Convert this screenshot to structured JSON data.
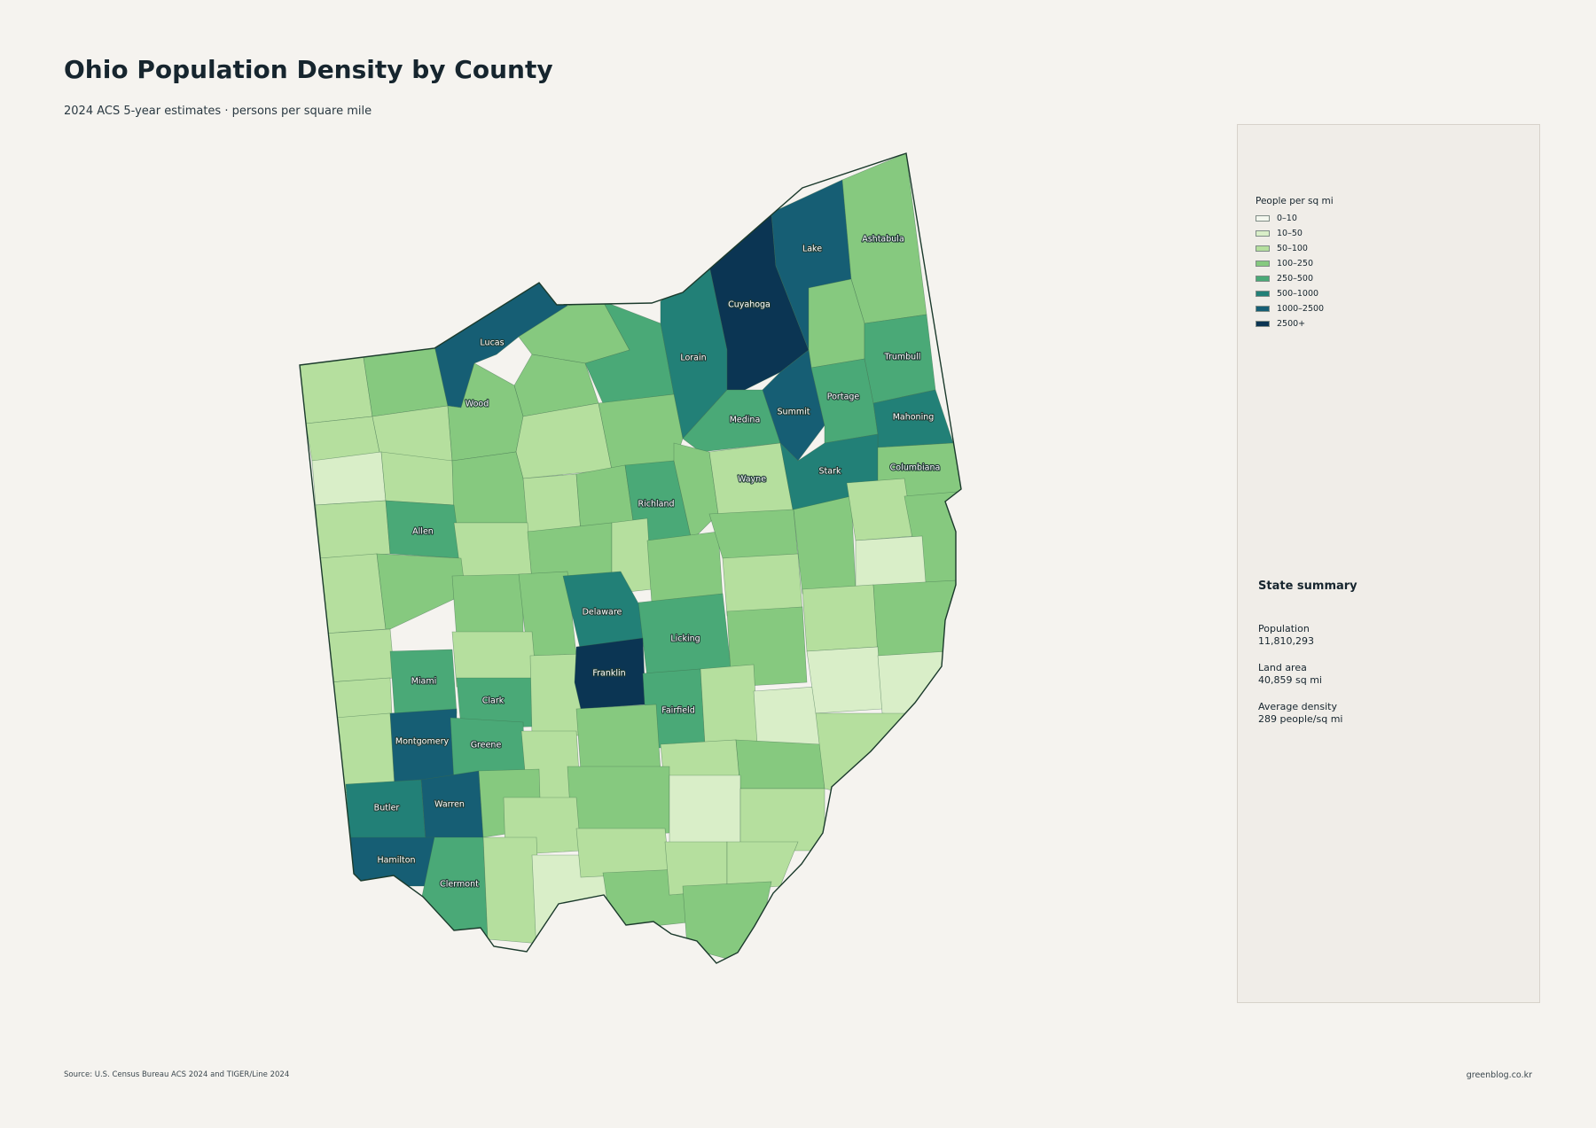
{
  "title": "Ohio Population Density by County",
  "subtitle": "2024 ACS 5-year estimates · persons per square mile",
  "legend": {
    "title": "People per sq mi",
    "items": [
      {
        "label": "0–10",
        "color": "#f3f7ee"
      },
      {
        "label": "10–50",
        "color": "#d9eec8"
      },
      {
        "label": "50–100",
        "color": "#b5df9e"
      },
      {
        "label": "100–250",
        "color": "#86c97f"
      },
      {
        "label": "250–500",
        "color": "#4aa977"
      },
      {
        "label": "500–1000",
        "color": "#228077"
      },
      {
        "label": "1000–2500",
        "color": "#165e74"
      },
      {
        "label": "2500+",
        "color": "#0b3553"
      }
    ]
  },
  "summary": {
    "title": "State summary",
    "stats": [
      {
        "label": "Population",
        "value": "11,810,293"
      },
      {
        "label": "Land area",
        "value": "40,859 sq mi"
      },
      {
        "label": "Average density",
        "value": "289 people/sq mi"
      }
    ]
  },
  "county_labels": [
    "Lucas",
    "Wood",
    "Ashtabula",
    "Lake",
    "Cuyahoga",
    "Lorain",
    "Trumbull",
    "Portage",
    "Summit",
    "Medina",
    "Mahoning",
    "Stark",
    "Columbiana",
    "Wayne",
    "Richland",
    "Allen",
    "Delaware",
    "Licking",
    "Franklin",
    "Miami",
    "Clark",
    "Fairfield",
    "Montgomery",
    "Greene",
    "Butler",
    "Warren",
    "Hamilton",
    "Clermont"
  ],
  "footer": {
    "source": "Source: U.S. Census Bureau ACS 2024 and TIGER/Line 2024",
    "site": "greenblog.co.kr"
  }
}
